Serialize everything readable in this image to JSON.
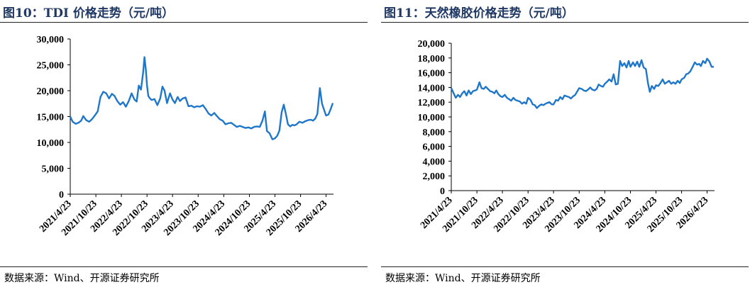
{
  "charts": [
    {
      "id": "tdi",
      "title": "图10：TDI 价格走势（元/吨）",
      "source": "数据来源：Wind、开源证券研究所"
    },
    {
      "id": "rubber",
      "title": "图11：天然橡胶价格走势（元/吨）",
      "source": "数据来源：Wind、开源证券研究所"
    }
  ],
  "colors": {
    "line": "#1f77c9",
    "title": "#1f3864"
  },
  "chart_data": [
    {
      "type": "line",
      "title": "",
      "xlabel": "",
      "ylabel": "",
      "ylim": [
        0,
        30000
      ],
      "yticks": [
        "0",
        "5,000",
        "10,000",
        "15,000",
        "20,000",
        "25,000",
        "30,000"
      ],
      "ytick_values": [
        0,
        5000,
        10000,
        15000,
        20000,
        25000,
        30000
      ],
      "xlim": [
        "2021-04-23",
        "2026-06-15"
      ],
      "xticks": [
        "2021/4/23",
        "2021/10/23",
        "2022/4/23",
        "2022/10/23",
        "2023/4/23",
        "2023/10/23",
        "2024/4/23",
        "2024/10/23",
        "2025/4/23",
        "2025/10/23",
        "2026/4/23"
      ],
      "xtick_dates": [
        "2021-04-23",
        "2021-10-23",
        "2022-04-23",
        "2022-10-23",
        "2023-04-23",
        "2023-10-23",
        "2024-04-23",
        "2024-10-23",
        "2025-04-23",
        "2025-10-23",
        "2026-04-23"
      ],
      "grid": false,
      "series": [
        {
          "x": [
            "2021-04-23",
            "2021-05-10",
            "2021-06-01",
            "2021-06-20",
            "2021-07-10",
            "2021-07-25",
            "2021-08-15",
            "2021-09-05",
            "2021-09-25",
            "2021-10-15",
            "2021-11-05",
            "2021-11-25",
            "2021-12-15",
            "2022-01-05",
            "2022-01-25",
            "2022-02-15",
            "2022-03-05",
            "2022-03-25",
            "2022-04-15",
            "2022-05-05",
            "2022-05-25",
            "2022-06-15",
            "2022-07-05",
            "2022-07-25",
            "2022-08-10",
            "2022-08-25",
            "2022-09-10",
            "2022-09-25",
            "2022-10-05",
            "2022-10-15",
            "2022-10-23",
            "2022-11-01",
            "2022-11-10",
            "2022-11-25",
            "2022-12-15",
            "2023-01-05",
            "2023-01-25",
            "2023-02-10",
            "2023-02-25",
            "2023-03-15",
            "2023-04-05",
            "2023-04-23",
            "2023-05-10",
            "2023-05-30",
            "2023-06-15",
            "2023-07-05",
            "2023-07-25",
            "2023-08-15",
            "2023-09-05",
            "2023-09-25",
            "2023-10-15",
            "2023-11-05",
            "2023-11-25",
            "2023-12-15",
            "2024-01-05",
            "2024-01-25",
            "2024-02-15",
            "2024-03-05",
            "2024-03-25",
            "2024-04-15",
            "2024-05-05",
            "2024-05-25",
            "2024-06-15",
            "2024-07-05",
            "2024-07-25",
            "2024-08-15",
            "2024-09-05",
            "2024-09-25",
            "2024-10-15",
            "2024-11-05",
            "2024-11-25",
            "2024-12-15",
            "2025-01-05",
            "2025-01-25",
            "2025-02-10",
            "2025-02-25",
            "2025-03-15",
            "2025-04-05",
            "2025-04-23",
            "2025-05-10",
            "2025-05-25",
            "2025-06-10",
            "2025-06-25",
            "2025-07-10",
            "2025-07-25",
            "2025-08-10",
            "2025-08-25",
            "2025-09-10",
            "2025-09-25",
            "2025-10-15",
            "2025-11-05",
            "2025-11-25",
            "2025-12-15",
            "2026-01-05",
            "2026-01-20",
            "2026-02-05",
            "2026-02-20",
            "2026-03-10",
            "2026-03-25",
            "2026-04-10",
            "2026-04-23",
            "2026-05-10",
            "2026-05-25",
            "2026-06-10"
          ],
          "y": [
            15000,
            14000,
            13600,
            13800,
            14200,
            15100,
            14300,
            14000,
            14500,
            15200,
            16000,
            18800,
            19800,
            19500,
            18500,
            19400,
            19000,
            18000,
            17300,
            17800,
            16900,
            18000,
            19500,
            18300,
            17900,
            21000,
            20200,
            23500,
            26500,
            24000,
            21000,
            19000,
            18600,
            18200,
            18400,
            17200,
            18500,
            20800,
            20000,
            17600,
            19500,
            18300,
            17600,
            18800,
            18000,
            18500,
            18700,
            17000,
            17100,
            16800,
            17000,
            16900,
            17200,
            16500,
            15600,
            15200,
            15700,
            15100,
            14500,
            14200,
            13500,
            13700,
            13800,
            13400,
            13000,
            13200,
            13000,
            12800,
            12900,
            12700,
            13000,
            13100,
            13000,
            14300,
            16000,
            12200,
            11800,
            10600,
            10800,
            11300,
            12300,
            15800,
            17300,
            15500,
            13500,
            13100,
            13400,
            13300,
            13500,
            14000,
            13800,
            14100,
            14300,
            14400,
            14200,
            14600,
            15500,
            20500,
            17500,
            16200,
            15200,
            15400,
            16400,
            17600
          ]
        }
      ]
    },
    {
      "type": "line",
      "title": "",
      "xlabel": "",
      "ylabel": "",
      "ylim": [
        0,
        20000
      ],
      "yticks": [
        "0",
        "2,000",
        "4,000",
        "6,000",
        "8,000",
        "10,000",
        "12,000",
        "14,000",
        "16,000",
        "18,000",
        "20,000"
      ],
      "ytick_values": [
        0,
        2000,
        4000,
        6000,
        8000,
        10000,
        12000,
        14000,
        16000,
        18000,
        20000
      ],
      "xlim": [
        "2021-04-23",
        "2026-06-15"
      ],
      "xticks": [
        "2021/4/23",
        "2021/10/23",
        "2022/4/23",
        "2022/10/23",
        "2023/4/23",
        "2023/10/23",
        "2024/4/23",
        "2024/10/23",
        "2025/4/23",
        "2025/10/23",
        "2026/4/23"
      ],
      "xtick_dates": [
        "2021-04-23",
        "2021-10-23",
        "2022-04-23",
        "2022-10-23",
        "2023-04-23",
        "2023-10-23",
        "2024-04-23",
        "2024-10-23",
        "2025-04-23",
        "2025-10-23",
        "2026-04-23"
      ],
      "grid": false,
      "series": [
        {
          "x": [
            "2021-04-23",
            "2021-05-10",
            "2021-05-25",
            "2021-06-10",
            "2021-06-25",
            "2021-07-10",
            "2021-07-25",
            "2021-08-10",
            "2021-08-25",
            "2021-09-10",
            "2021-09-25",
            "2021-10-10",
            "2021-10-23",
            "2021-11-10",
            "2021-11-25",
            "2021-12-10",
            "2021-12-25",
            "2022-01-10",
            "2022-01-25",
            "2022-02-10",
            "2022-02-25",
            "2022-03-10",
            "2022-03-25",
            "2022-04-10",
            "2022-04-23",
            "2022-05-10",
            "2022-05-25",
            "2022-06-10",
            "2022-06-25",
            "2022-07-10",
            "2022-07-25",
            "2022-08-10",
            "2022-08-25",
            "2022-09-10",
            "2022-09-25",
            "2022-10-10",
            "2022-10-23",
            "2022-11-10",
            "2022-11-25",
            "2022-12-10",
            "2022-12-25",
            "2023-01-10",
            "2023-01-25",
            "2023-02-10",
            "2023-02-25",
            "2023-03-10",
            "2023-03-25",
            "2023-04-10",
            "2023-04-23",
            "2023-05-10",
            "2023-05-25",
            "2023-06-10",
            "2023-06-25",
            "2023-07-10",
            "2023-07-25",
            "2023-08-10",
            "2023-08-25",
            "2023-09-10",
            "2023-09-25",
            "2023-10-10",
            "2023-10-23",
            "2023-11-10",
            "2023-11-25",
            "2023-12-10",
            "2023-12-25",
            "2024-01-10",
            "2024-01-25",
            "2024-02-10",
            "2024-02-25",
            "2024-03-10",
            "2024-03-25",
            "2024-04-10",
            "2024-04-23",
            "2024-05-10",
            "2024-05-25",
            "2024-06-10",
            "2024-06-25",
            "2024-07-10",
            "2024-07-25",
            "2024-08-10",
            "2024-08-25",
            "2024-09-10",
            "2024-09-25",
            "2024-10-10",
            "2024-10-23",
            "2024-11-10",
            "2024-11-25",
            "2024-12-10",
            "2024-12-25",
            "2025-01-10",
            "2025-01-25",
            "2025-02-10",
            "2025-02-25",
            "2025-03-10",
            "2025-03-25",
            "2025-04-10",
            "2025-04-23",
            "2025-05-10",
            "2025-05-25",
            "2025-06-10",
            "2025-06-25",
            "2025-07-10",
            "2025-07-25",
            "2025-08-10",
            "2025-08-25",
            "2025-09-10",
            "2025-09-25",
            "2025-10-10",
            "2025-10-23",
            "2025-11-10",
            "2025-11-25",
            "2025-12-10",
            "2025-12-25",
            "2026-01-10",
            "2026-01-25",
            "2026-02-10",
            "2026-02-25",
            "2026-03-10",
            "2026-03-25",
            "2026-04-10",
            "2026-04-23",
            "2026-05-10",
            "2026-05-25",
            "2026-06-10"
          ],
          "y": [
            13900,
            13200,
            12600,
            13000,
            12700,
            13200,
            13500,
            12900,
            13600,
            13100,
            13500,
            13600,
            13700,
            14700,
            13900,
            13800,
            14100,
            13800,
            13500,
            13400,
            13200,
            13600,
            13100,
            12800,
            12700,
            13000,
            12600,
            12400,
            12200,
            12600,
            12300,
            12200,
            12100,
            11800,
            12000,
            11800,
            12600,
            12300,
            11700,
            11600,
            11200,
            11500,
            11700,
            11600,
            11800,
            11900,
            12000,
            11700,
            11700,
            12300,
            12200,
            12700,
            12400,
            12900,
            12800,
            12700,
            12500,
            12800,
            13000,
            13500,
            13900,
            13800,
            13600,
            13500,
            13700,
            14000,
            13700,
            13600,
            13800,
            14400,
            14200,
            14100,
            14500,
            14800,
            15100,
            14800,
            15800,
            14400,
            14500,
            17600,
            16900,
            17300,
            16700,
            17600,
            16800,
            17400,
            16900,
            17500,
            16800,
            17700,
            16700,
            16500,
            14600,
            13400,
            14200,
            13800,
            14300,
            14200,
            14600,
            15100,
            14500,
            14700,
            14900,
            14500,
            14700,
            14500,
            14900,
            14600,
            15100,
            15300,
            15800,
            15900,
            16200,
            16800,
            17400,
            17100,
            17200,
            16900,
            17600,
            17300,
            17900,
            17500,
            16800,
            16800
          ]
        }
      ]
    }
  ]
}
